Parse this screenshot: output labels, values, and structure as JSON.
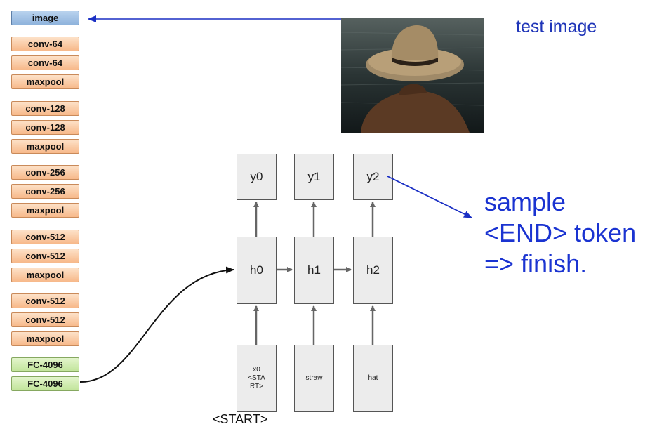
{
  "layers": [
    {
      "label": "image",
      "kind": "image"
    },
    {
      "label": "conv-64",
      "kind": "conv"
    },
    {
      "label": "conv-64",
      "kind": "conv"
    },
    {
      "label": "maxpool",
      "kind": "conv"
    },
    {
      "label": "conv-128",
      "kind": "conv"
    },
    {
      "label": "conv-128",
      "kind": "conv"
    },
    {
      "label": "maxpool",
      "kind": "conv"
    },
    {
      "label": "conv-256",
      "kind": "conv"
    },
    {
      "label": "conv-256",
      "kind": "conv"
    },
    {
      "label": "maxpool",
      "kind": "conv"
    },
    {
      "label": "conv-512",
      "kind": "conv"
    },
    {
      "label": "conv-512",
      "kind": "conv"
    },
    {
      "label": "maxpool",
      "kind": "conv"
    },
    {
      "label": "conv-512",
      "kind": "conv"
    },
    {
      "label": "conv-512",
      "kind": "conv"
    },
    {
      "label": "maxpool",
      "kind": "conv"
    },
    {
      "label": "FC-4096",
      "kind": "fc"
    },
    {
      "label": "FC-4096",
      "kind": "fc"
    }
  ],
  "captions": {
    "test_image": "test image",
    "sample": [
      "sample",
      "<END> token",
      "=> finish."
    ]
  },
  "rnn": {
    "outputs": [
      "y0",
      "y1",
      "y2"
    ],
    "hidden": [
      "h0",
      "h1",
      "h2"
    ],
    "inputs": [
      "x0\n<STA\nRT>",
      "straw",
      "hat"
    ],
    "start_label": "<START>"
  },
  "colors": {
    "image_layer": "#9fc0e4",
    "conv_layer": "#f9c79d",
    "fc_layer": "#cdeaa8",
    "annotation": "#1a33d1"
  }
}
